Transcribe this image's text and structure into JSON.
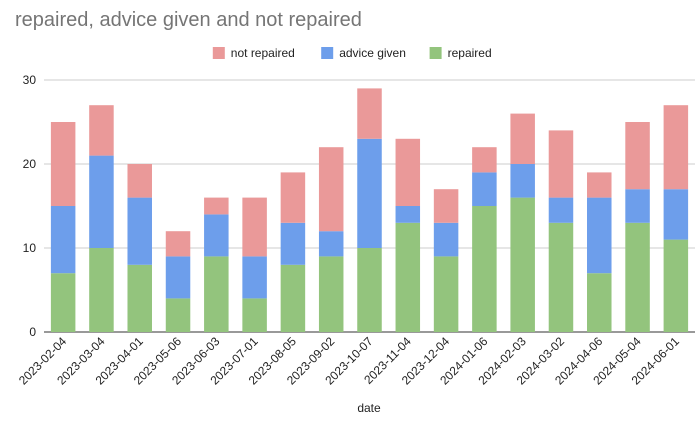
{
  "chart_data": {
    "type": "bar",
    "stacked": true,
    "title": "repaired, advice given and not repaired",
    "xlabel": "date",
    "ylabel": "",
    "ylim": [
      0,
      30
    ],
    "yticks": [
      0,
      10,
      20,
      30
    ],
    "grid": true,
    "legend_position": "top",
    "categories": [
      "2023-02-04",
      "2023-03-04",
      "2023-04-01",
      "2023-05-06",
      "2023-06-03",
      "2023-07-01",
      "2023-08-05",
      "2023-09-02",
      "2023-10-07",
      "2023-11-04",
      "2023-12-04",
      "2024-01-06",
      "2024-02-03",
      "2024-03-02",
      "2024-04-06",
      "2024-05-04",
      "2024-06-01"
    ],
    "series": [
      {
        "name": "repaired",
        "color": "#93c47d",
        "values": [
          7,
          10,
          8,
          4,
          9,
          4,
          8,
          9,
          10,
          13,
          9,
          15,
          16,
          13,
          7,
          13,
          11
        ]
      },
      {
        "name": "advice given",
        "color": "#6d9eeb",
        "values": [
          8,
          11,
          8,
          5,
          5,
          5,
          5,
          3,
          13,
          2,
          4,
          4,
          4,
          3,
          9,
          4,
          6
        ]
      },
      {
        "name": "not repaired",
        "color": "#ea9999",
        "values": [
          10,
          6,
          4,
          3,
          2,
          7,
          6,
          10,
          6,
          8,
          4,
          3,
          6,
          8,
          3,
          8,
          10
        ]
      }
    ],
    "legend_order": [
      "not repaired",
      "advice given",
      "repaired"
    ]
  }
}
